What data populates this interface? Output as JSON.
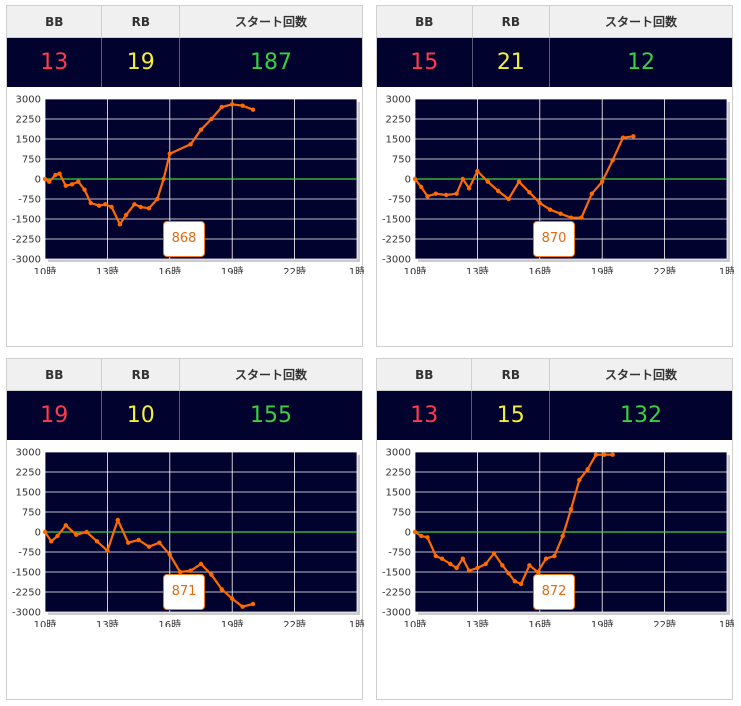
{
  "colors": {
    "plot_bg": "#02022e",
    "line": "#ff6a00",
    "zero_line": "#3ed33e",
    "bb": "#ff3b4e",
    "rb": "#f4ee3a",
    "start": "#39d13c",
    "badge": "#ee7a1c"
  },
  "header": {
    "bb": "BB",
    "rb": "RB",
    "start": "スタート回数"
  },
  "machines": [
    {
      "bb": "13",
      "rb": "19",
      "start": "187",
      "number": "868"
    },
    {
      "bb": "15",
      "rb": "21",
      "start": "12",
      "number": "870"
    },
    {
      "bb": "19",
      "rb": "10",
      "start": "155",
      "number": "871"
    },
    {
      "bb": "13",
      "rb": "15",
      "start": "132",
      "number": "872"
    }
  ],
  "chart_data": [
    {
      "type": "line",
      "ylim": [
        -3000,
        3000
      ],
      "xlim": [
        10,
        25
      ],
      "yticks": [
        "3000",
        "2250",
        "1500",
        "750",
        "0",
        "-750",
        "-1500",
        "-2250",
        "-3000"
      ],
      "xticks": [
        "10時",
        "13時",
        "16時",
        "19時",
        "22時",
        "1時"
      ],
      "x": [
        10,
        10.2,
        10.5,
        10.7,
        11.0,
        11.3,
        11.6,
        11.9,
        12.2,
        12.6,
        12.9,
        13.2,
        13.6,
        13.9,
        14.3,
        14.6,
        15.0,
        15.4,
        15.7,
        16.0,
        17.0,
        17.5,
        18.0,
        18.5,
        19.0,
        19.5,
        20.0
      ],
      "y": [
        0,
        -100,
        150,
        200,
        -250,
        -200,
        -100,
        -400,
        -900,
        -1000,
        -950,
        -1050,
        -1700,
        -1350,
        -950,
        -1050,
        -1100,
        -750,
        0,
        950,
        1300,
        1850,
        2250,
        2700,
        2800,
        2750,
        2600
      ]
    },
    {
      "type": "line",
      "ylim": [
        -3000,
        3000
      ],
      "xlim": [
        10,
        25
      ],
      "yticks": [
        "3000",
        "2250",
        "1500",
        "750",
        "0",
        "-750",
        "-1500",
        "-2250",
        "-3000"
      ],
      "xticks": [
        "10時",
        "13時",
        "16時",
        "19時",
        "22時",
        "1時"
      ],
      "x": [
        10,
        10.3,
        10.6,
        11.0,
        11.5,
        12.0,
        12.3,
        12.6,
        13.0,
        13.5,
        14.0,
        14.5,
        15.0,
        15.5,
        16.0,
        16.5,
        17.0,
        17.5,
        18.0,
        18.5,
        19.0,
        19.5,
        20.0,
        20.5
      ],
      "y": [
        0,
        -300,
        -650,
        -550,
        -600,
        -550,
        0,
        -350,
        300,
        -100,
        -450,
        -750,
        -100,
        -500,
        -900,
        -1150,
        -1300,
        -1450,
        -1450,
        -550,
        -100,
        700,
        1550,
        1600
      ]
    },
    {
      "type": "line",
      "ylim": [
        -3000,
        3000
      ],
      "xlim": [
        10,
        25
      ],
      "yticks": [
        "3000",
        "2250",
        "1500",
        "750",
        "0",
        "-750",
        "-1500",
        "-2250",
        "-3000"
      ],
      "xticks": [
        "10時",
        "13時",
        "16時",
        "19時",
        "22時",
        "1時"
      ],
      "x": [
        10,
        10.3,
        10.6,
        11.0,
        11.5,
        12.0,
        12.5,
        13.0,
        13.5,
        14.0,
        14.5,
        15.0,
        15.5,
        16.0,
        16.5,
        17.0,
        17.5,
        18.0,
        18.5,
        19.0,
        19.5,
        20.0
      ],
      "y": [
        0,
        -350,
        -150,
        250,
        -100,
        0,
        -350,
        -700,
        450,
        -400,
        -300,
        -550,
        -400,
        -850,
        -1500,
        -1450,
        -1200,
        -1600,
        -2150,
        -2500,
        -2800,
        -2700
      ]
    },
    {
      "type": "line",
      "ylim": [
        -3000,
        3000
      ],
      "xlim": [
        10,
        25
      ],
      "yticks": [
        "3000",
        "2250",
        "1500",
        "750",
        "0",
        "-750",
        "-1500",
        "-2250",
        "-3000"
      ],
      "xticks": [
        "10時",
        "13時",
        "16時",
        "19時",
        "22時",
        "1時"
      ],
      "x": [
        10,
        10.3,
        10.6,
        11.0,
        11.3,
        11.7,
        12.0,
        12.3,
        12.6,
        13.0,
        13.4,
        13.8,
        14.2,
        14.5,
        14.8,
        15.1,
        15.5,
        15.9,
        16.3,
        16.7,
        17.1,
        17.5,
        17.9,
        18.3,
        18.7,
        19.1,
        19.5
      ],
      "y": [
        0,
        -150,
        -200,
        -900,
        -1000,
        -1200,
        -1350,
        -1000,
        -1450,
        -1350,
        -1200,
        -800,
        -1250,
        -1550,
        -1850,
        -1950,
        -1250,
        -1500,
        -1000,
        -900,
        -150,
        850,
        1950,
        2350,
        2900,
        2900,
        2900
      ]
    }
  ]
}
